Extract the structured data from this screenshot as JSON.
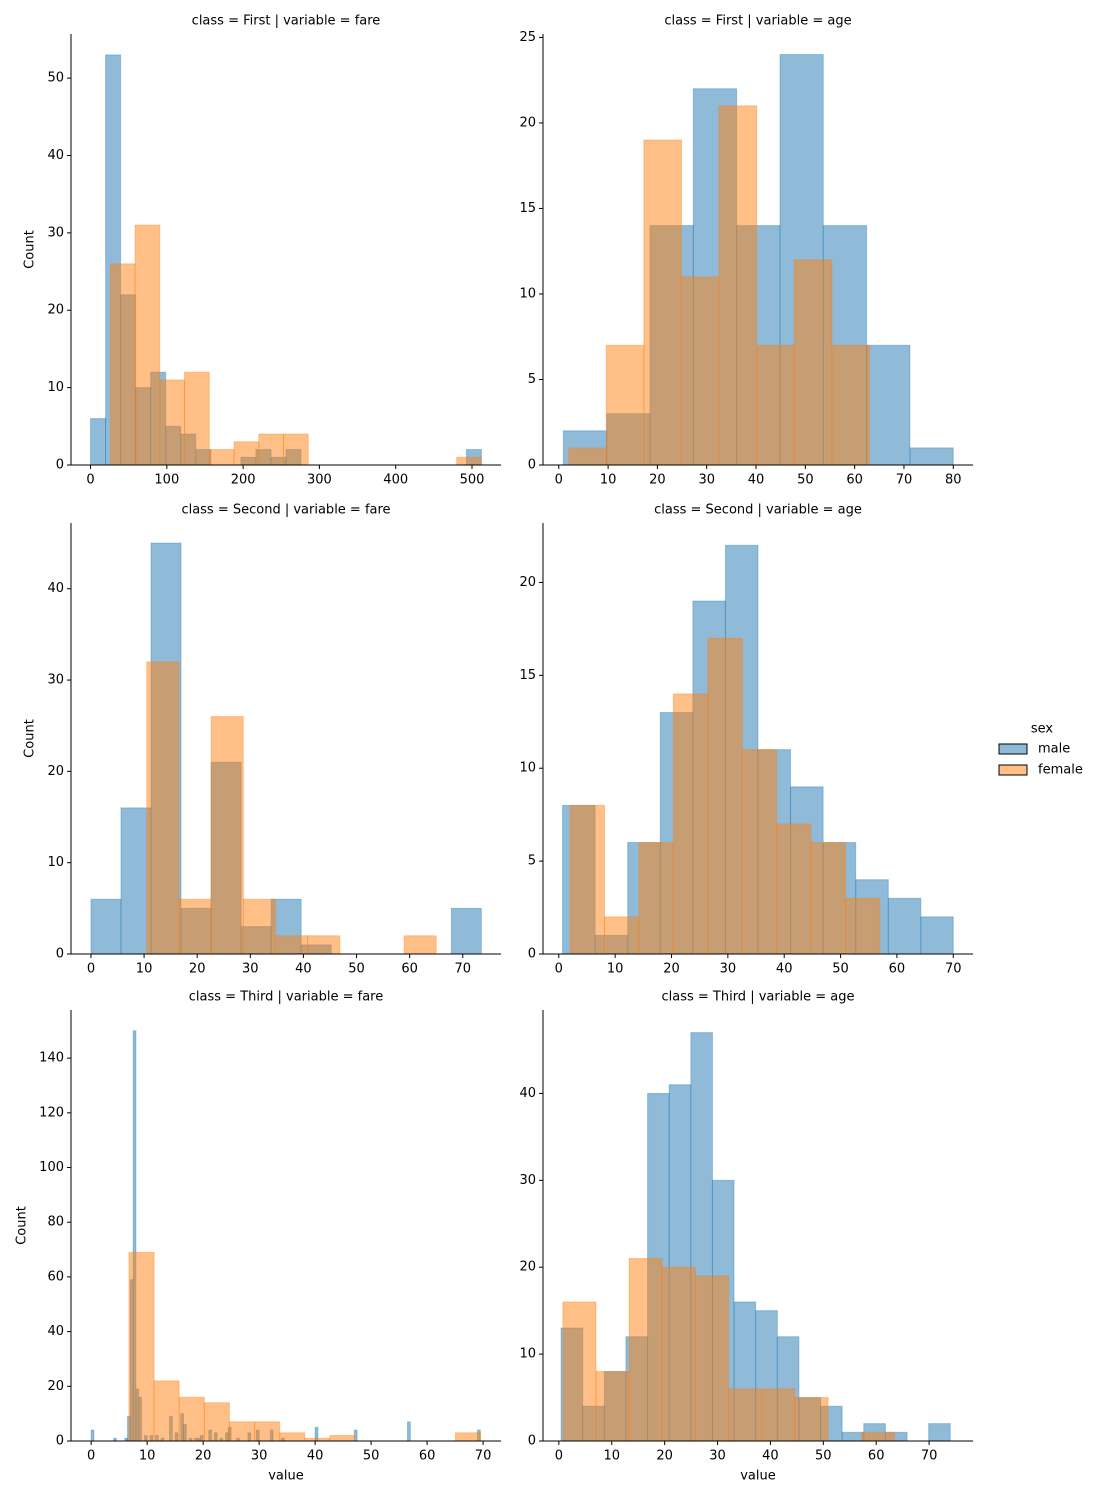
{
  "legend_title": "sex",
  "chart_data": [
    {
      "type": "histogram",
      "title": "class = First | variable = fare",
      "ylabel": "Count",
      "xlim": [
        -25.6,
        538
      ],
      "ylim": [
        0,
        55.7
      ],
      "xticks": [
        0,
        100,
        200,
        300,
        400,
        500
      ],
      "yticks": [
        0,
        10,
        20,
        30,
        40,
        50
      ],
      "series": [
        {
          "name": "male",
          "color": "#1f77b4",
          "bins": [
            0,
            19.71,
            39.41,
            59.12,
            78.82,
            98.53,
            118.23,
            137.94,
            157.64,
            177.35,
            197.05,
            216.76,
            236.46,
            256.17,
            275.87,
            295.58,
            315.28,
            334.99,
            354.69,
            374.4,
            394.1,
            413.81,
            433.51,
            453.22,
            472.92,
            492.63,
            512.33
          ],
          "values": [
            6,
            53,
            22,
            10,
            12,
            5,
            4,
            2,
            0,
            0,
            1,
            2,
            1,
            2,
            0,
            0,
            0,
            0,
            0,
            0,
            0,
            0,
            0,
            0,
            0,
            2
          ]
        },
        {
          "name": "female",
          "color": "#ff7f0e",
          "bins": [
            25.93,
            58.36,
            90.79,
            123.22,
            155.65,
            188.08,
            220.51,
            252.94,
            285.37,
            317.8,
            350.23,
            382.66,
            415.09,
            447.52,
            479.95,
            512.33
          ],
          "values": [
            26,
            31,
            11,
            12,
            2,
            3,
            4,
            4,
            0,
            0,
            0,
            0,
            0,
            0,
            1
          ]
        }
      ]
    },
    {
      "type": "histogram",
      "title": "class = First | variable = age",
      "xlim": [
        -3.2,
        84
      ],
      "ylim": [
        0,
        25.2
      ],
      "xticks": [
        0,
        10,
        20,
        30,
        40,
        50,
        60,
        70,
        80
      ],
      "yticks": [
        0,
        5,
        10,
        15,
        20,
        25
      ],
      "series": [
        {
          "name": "male",
          "color": "#1f77b4",
          "bins": [
            0.92,
            9.71,
            18.49,
            27.28,
            36.07,
            44.86,
            53.64,
            62.43,
            71.21,
            80
          ],
          "values": [
            2,
            3,
            14,
            22,
            14,
            24,
            14,
            7,
            1
          ]
        },
        {
          "name": "female",
          "color": "#ff7f0e",
          "bins": [
            2,
            9.63,
            17.25,
            24.88,
            32.5,
            40.13,
            47.75,
            55.38,
            63
          ],
          "values": [
            1,
            7,
            19,
            11,
            21,
            7,
            12,
            7
          ]
        }
      ]
    },
    {
      "type": "histogram",
      "title": "class = Second | variable = fare",
      "ylabel": "Count",
      "xlim": [
        -3.76,
        77.2
      ],
      "ylim": [
        0,
        47.2
      ],
      "xticks": [
        0,
        10,
        20,
        30,
        40,
        50,
        60,
        70
      ],
      "yticks": [
        0,
        10,
        20,
        30,
        40
      ],
      "series": [
        {
          "name": "male",
          "color": "#1f77b4",
          "bins": [
            0,
            5.65,
            11.31,
            16.96,
            22.62,
            28.27,
            33.92,
            39.58,
            45.23,
            50.88,
            56.54,
            62.19,
            67.85,
            73.5
          ],
          "values": [
            6,
            16,
            45,
            5,
            21,
            3,
            6,
            1,
            0,
            0,
            0,
            0,
            5
          ]
        },
        {
          "name": "female",
          "color": "#ff7f0e",
          "bins": [
            10.5,
            16.56,
            22.62,
            28.68,
            34.74,
            40.8,
            46.86,
            52.92,
            58.98,
            65
          ],
          "values": [
            32,
            6,
            26,
            6,
            2,
            2,
            0,
            0,
            2
          ]
        }
      ]
    },
    {
      "type": "histogram",
      "title": "class = Second | variable = age",
      "xlim": [
        -2.8,
        73.5
      ],
      "ylim": [
        0,
        23.2
      ],
      "xticks": [
        0,
        10,
        20,
        30,
        40,
        50,
        60,
        70
      ],
      "yticks": [
        0,
        5,
        10,
        15,
        20
      ],
      "series": [
        {
          "name": "male",
          "color": "#1f77b4",
          "bins": [
            0.67,
            6.45,
            12.23,
            18.01,
            23.79,
            29.57,
            35.35,
            41.13,
            46.91,
            52.69,
            58.47,
            64.25,
            70
          ],
          "values": [
            8,
            1,
            6,
            13,
            19,
            22,
            11,
            9,
            6,
            4,
            3,
            2
          ]
        },
        {
          "name": "female",
          "color": "#ff7f0e",
          "bins": [
            2,
            8.11,
            14.22,
            20.33,
            26.44,
            32.56,
            38.67,
            44.78,
            50.89,
            57
          ],
          "values": [
            8,
            2,
            6,
            14,
            17,
            11,
            7,
            6,
            3
          ]
        }
      ]
    },
    {
      "type": "histogram",
      "title": "class = Third | variable = fare",
      "ylabel": "Count",
      "xlabel": "value",
      "xlim": [
        -3.6,
        73.2
      ],
      "ylim": [
        0,
        157.6
      ],
      "xticks": [
        0,
        10,
        20,
        30,
        40,
        50,
        60,
        70
      ],
      "yticks": [
        0,
        20,
        40,
        60,
        80,
        100,
        120,
        140
      ],
      "series": [
        {
          "name": "male",
          "color": "#1f77b4",
          "bins": [
            0,
            0.5,
            1,
            1.5,
            2,
            2.5,
            3,
            3.5,
            4,
            4.5,
            5,
            5.5,
            6,
            6.5,
            7,
            7.5,
            8,
            8.5,
            9,
            9.5,
            10,
            10.5,
            11,
            11.5,
            12,
            12.5,
            13,
            13.5,
            14,
            14.5,
            15,
            15.5,
            16,
            16.5,
            17,
            17.5,
            18,
            18.5,
            19,
            19.5,
            20,
            20.5,
            21,
            21.5,
            22,
            22.5,
            23,
            23.5,
            24,
            24.5,
            25,
            25.5,
            26,
            26.5,
            27,
            27.5,
            28,
            28.5,
            29,
            29.5,
            30,
            30.5,
            31,
            31.5,
            32,
            32.5,
            33,
            33.5,
            34,
            34.5,
            35,
            35.5,
            36,
            36.5,
            37,
            37.5,
            38,
            38.5,
            39,
            39.5,
            40,
            40.5,
            41,
            41.5,
            42,
            42.5,
            43,
            43.5,
            44,
            44.5,
            45,
            45.5,
            46,
            46.5,
            47,
            47.5,
            48,
            48.5,
            49,
            49.5,
            50,
            50.5,
            51,
            51.5,
            52,
            52.5,
            53,
            53.5,
            54,
            54.5,
            55,
            55.5,
            56,
            56.5,
            57,
            57.5,
            58,
            58.5,
            59,
            59.5,
            60,
            60.5,
            61,
            61.5,
            62,
            62.5,
            63,
            63.5,
            64,
            64.5,
            65,
            65.5,
            66,
            66.5,
            67,
            67.5,
            68,
            68.5,
            69,
            69.5
          ],
          "values": [
            4,
            0,
            0,
            0,
            0,
            0,
            0,
            0,
            1,
            0,
            0,
            0,
            1,
            9,
            59,
            150,
            19,
            16,
            0,
            2,
            0,
            2,
            0,
            2,
            0,
            1,
            0,
            0,
            9,
            0,
            3,
            0,
            10,
            6,
            0,
            1,
            0,
            1,
            1,
            2,
            0,
            0,
            4,
            0,
            3,
            0,
            1,
            0,
            3,
            5,
            0,
            0,
            1,
            0,
            0,
            0,
            3,
            0,
            0,
            4,
            0,
            0,
            0,
            0,
            4,
            0,
            0,
            0,
            1,
            0,
            0,
            0,
            0,
            0,
            0,
            0,
            0,
            0,
            0,
            0,
            5,
            0,
            0,
            0,
            0,
            0,
            0,
            0,
            0,
            0,
            0,
            0,
            0,
            0,
            4,
            0,
            0,
            0,
            0,
            0,
            0,
            0,
            0,
            0,
            0,
            0,
            0,
            0,
            0,
            0,
            0,
            0,
            0,
            7,
            0,
            0,
            0,
            0,
            0,
            0,
            0,
            0,
            0,
            0,
            0,
            0,
            0,
            0,
            0,
            0,
            0,
            0,
            0,
            0,
            0,
            0,
            0,
            0,
            4
          ]
        },
        {
          "name": "female",
          "color": "#ff7f0e",
          "bins": [
            6.75,
            11.24,
            15.72,
            20.21,
            24.69,
            29.18,
            33.67,
            38.15,
            42.64,
            47.12,
            51.61,
            56.1,
            60.58,
            65.07,
            69.55
          ],
          "values": [
            69,
            22,
            16,
            14,
            7,
            7,
            3,
            1,
            2,
            0,
            0,
            0,
            0,
            3
          ]
        }
      ]
    },
    {
      "type": "histogram",
      "title": "class = Third | variable = age",
      "xlabel": "value",
      "xlim": [
        -3,
        78.3
      ],
      "ylim": [
        0,
        49.6
      ],
      "xticks": [
        0,
        10,
        20,
        30,
        40,
        50,
        60,
        70
      ],
      "yticks": [
        0,
        10,
        20,
        30,
        40
      ],
      "series": [
        {
          "name": "male",
          "color": "#1f77b4",
          "bins": [
            0.42,
            4.51,
            8.6,
            12.68,
            16.77,
            20.86,
            24.95,
            29.04,
            33.12,
            37.21,
            41.3,
            45.39,
            49.48,
            53.56,
            57.65,
            61.74,
            65.83,
            69.92,
            74
          ],
          "values": [
            13,
            4,
            8,
            12,
            40,
            41,
            47,
            30,
            16,
            15,
            12,
            5,
            4,
            1,
            2,
            1,
            0,
            2
          ]
        },
        {
          "name": "female",
          "color": "#ff7f0e",
          "bins": [
            0.75,
            7.02,
            13.29,
            19.56,
            25.83,
            32.1,
            38.37,
            44.64,
            50.91,
            57.18,
            63.45
          ],
          "values": [
            16,
            8,
            21,
            20,
            19,
            6,
            6,
            5,
            0,
            1
          ]
        }
      ]
    }
  ]
}
